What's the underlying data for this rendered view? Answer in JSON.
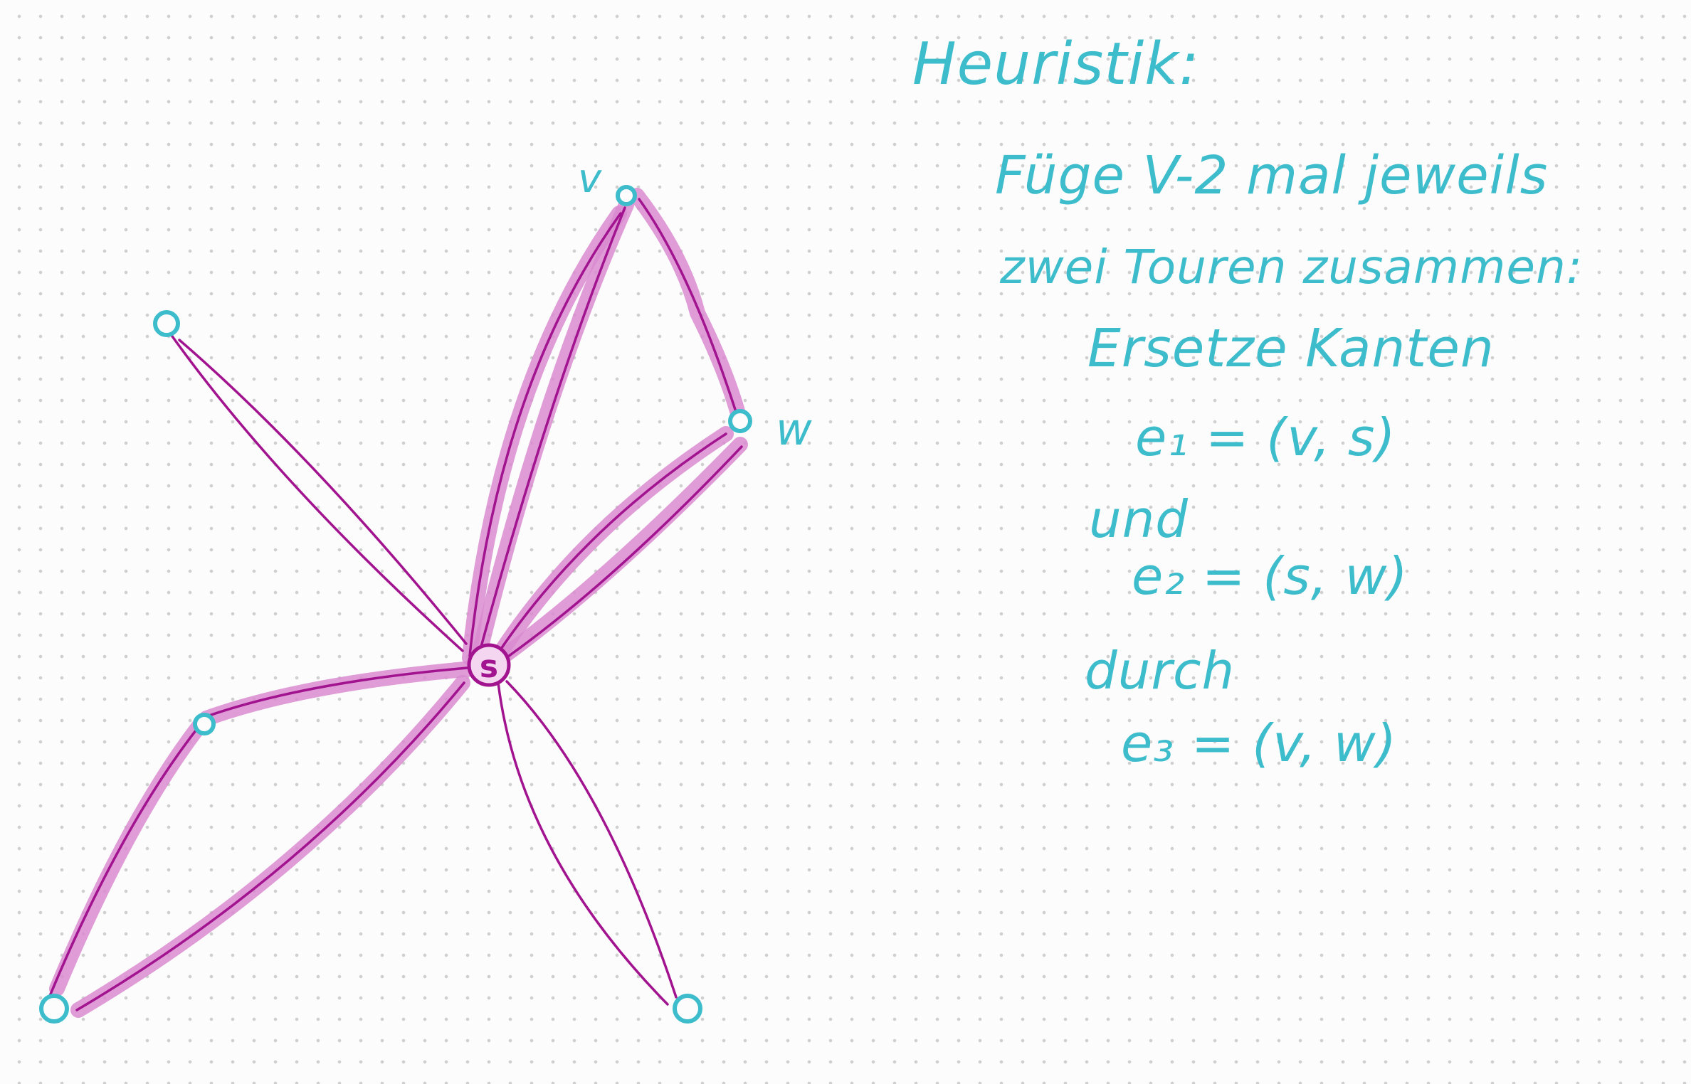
{
  "title": "Heuristik:",
  "description": {
    "line1": "Füge V-2 mal jeweils",
    "line2": "zwei Touren zusammen:",
    "line3": "Ersetze Kanten",
    "e1": "e₁ = (v, s)",
    "und": "und",
    "e2": "e₂ = (s, w)",
    "durch": "durch",
    "e3": "e₃ = (v, w)"
  },
  "graph": {
    "labels": {
      "v": "v",
      "w": "w",
      "s": "s"
    },
    "nodes": [
      "s",
      "v",
      "w",
      "top-left",
      "mid-left",
      "bottom-left",
      "bottom-right"
    ],
    "edges": [
      [
        "s",
        "v"
      ],
      [
        "s",
        "w"
      ],
      [
        "v",
        "w"
      ],
      [
        "s",
        "top-left"
      ],
      [
        "s",
        "mid-left"
      ],
      [
        "mid-left",
        "bottom-left"
      ],
      [
        "s",
        "bottom-left"
      ],
      [
        "s",
        "bottom-right"
      ]
    ]
  },
  "colors": {
    "ink": "#3dbccb",
    "edge": "#a2138f",
    "highlight": "#d98bd0",
    "paper": "#fcfcfc"
  }
}
